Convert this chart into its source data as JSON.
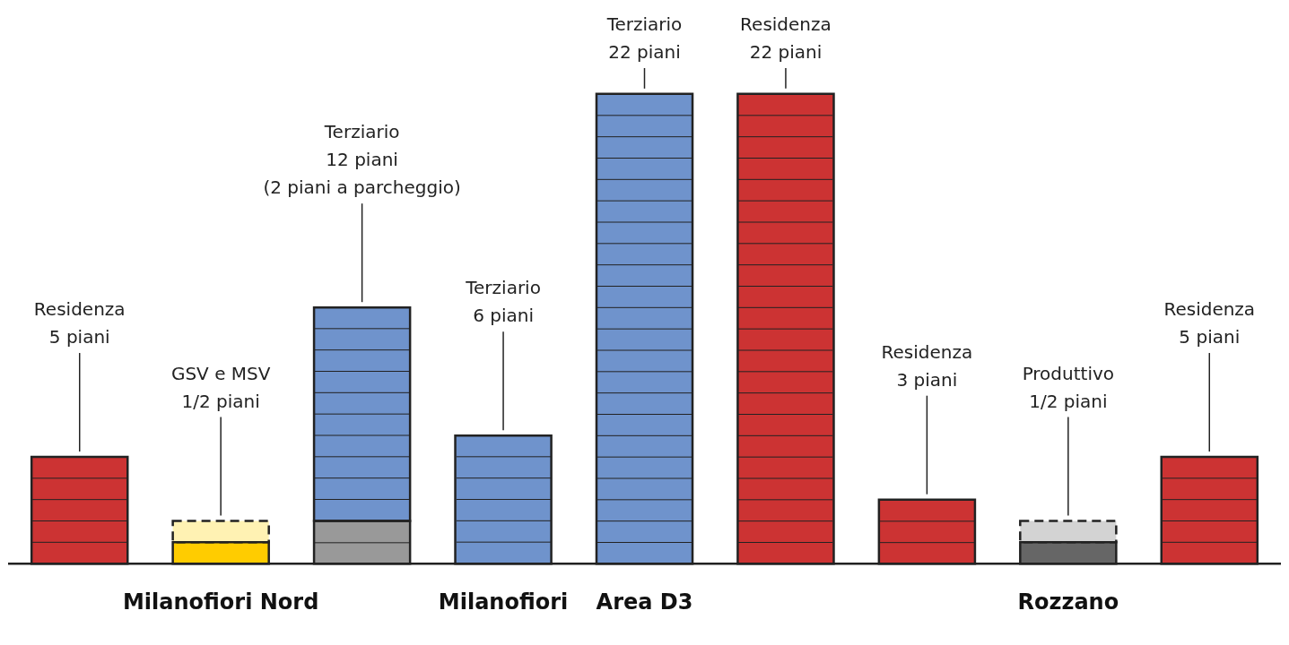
{
  "chart_data": {
    "type": "bar",
    "stacked": true,
    "tick_labels": "x",
    "categories": [
      null,
      "Milanofiori Nord",
      null,
      "Milanofiori",
      "Area D3",
      null,
      null,
      "Rozzano",
      null
    ],
    "series": [
      {
        "colors": [
          "#cc3333",
          "#ffcc00",
          "#999999",
          "#6f93cc",
          "#6f93cc",
          "#cc3333",
          "#cc3333",
          "#666666",
          "#cc3333"
        ],
        "values": [
          5,
          1,
          2,
          6,
          22,
          22,
          3,
          1,
          5
        ],
        "value_labels": [
          "Residenza\n5 piani",
          null,
          null,
          "Terziario\n6 piani",
          "Terziario\n22 piani",
          "Residenza\n22 piani",
          "Residenza\n3 piani",
          null,
          "Residenza\n5 piani"
        ]
      },
      {
        "color": "#6f93cc",
        "values": [
          null,
          null,
          10,
          null,
          null,
          null,
          null,
          null,
          null
        ],
        "value_labels": [
          null,
          null,
          "Terziario\n12 piani\n(2 piani a parcheggio)",
          null,
          null,
          null,
          null,
          null,
          null
        ]
      },
      {
        "colors": [
          null,
          "#fff2b3",
          null,
          null,
          null,
          null,
          null,
          "#d3d3d3",
          null
        ],
        "line_style": "dashed",
        "values": [
          null,
          1,
          null,
          null,
          null,
          null,
          null,
          1,
          null
        ],
        "value_labels": [
          null,
          "GSV e MSV\n1/2 piani",
          null,
          null,
          null,
          null,
          null,
          "Produttivo\n1/2 piani",
          null
        ]
      }
    ]
  }
}
